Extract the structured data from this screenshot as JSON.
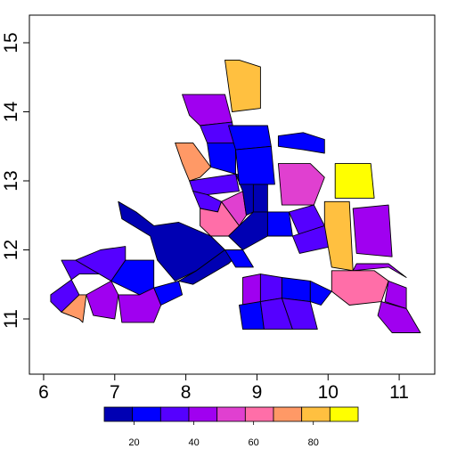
{
  "chart_data": {
    "type": "choropleth",
    "title": "",
    "xlabel": "",
    "ylabel": "",
    "xlim": [
      5.8,
      11.5
    ],
    "ylim": [
      10.2,
      15.4
    ],
    "x_ticks": [
      "6",
      "7",
      "8",
      "9",
      "10",
      "11"
    ],
    "y_ticks": [
      "11",
      "12",
      "13",
      "14",
      "15"
    ],
    "legend": {
      "min": 10,
      "max": 95,
      "tick_labels": [
        "20",
        "40",
        "60",
        "80"
      ],
      "tick_values": [
        20,
        40,
        60,
        80
      ],
      "colors": [
        "#0000B3",
        "#0000FF",
        "#5500FF",
        "#A000F0",
        "#E040D0",
        "#FF6EA8",
        "#FF9966",
        "#FFC040",
        "#FFFF00"
      ]
    },
    "regions": [
      {
        "value": 35,
        "points": [
          [
            6.25,
            11.85
          ],
          [
            6.45,
            11.85
          ],
          [
            6.95,
            11.55
          ],
          [
            6.95,
            11.65
          ],
          [
            6.5,
            11.65
          ],
          [
            6.1,
            11.35
          ],
          [
            6.1,
            11.25
          ],
          [
            6.25,
            11.1
          ],
          [
            6.5,
            11.0
          ],
          [
            6.5,
            11.35
          ]
        ]
      },
      {
        "value": 30,
        "points": [
          [
            6.45,
            11.85
          ],
          [
            6.8,
            12.0
          ],
          [
            7.15,
            12.05
          ],
          [
            7.15,
            11.85
          ],
          [
            6.95,
            11.55
          ],
          [
            6.45,
            11.85
          ]
        ]
      },
      {
        "value": 75,
        "points": [
          [
            6.25,
            11.1
          ],
          [
            6.5,
            11.0
          ],
          [
            6.55,
            10.95
          ],
          [
            6.6,
            11.35
          ],
          [
            6.5,
            11.35
          ],
          [
            6.25,
            11.1
          ]
        ]
      },
      {
        "value": 25,
        "points": [
          [
            6.95,
            11.55
          ],
          [
            7.15,
            11.85
          ],
          [
            7.55,
            11.85
          ],
          [
            7.55,
            11.45
          ],
          [
            7.35,
            11.35
          ],
          [
            6.95,
            11.55
          ]
        ]
      },
      {
        "value": 45,
        "points": [
          [
            6.6,
            11.35
          ],
          [
            6.95,
            11.55
          ],
          [
            7.05,
            11.35
          ],
          [
            7.0,
            11.0
          ],
          [
            6.7,
            11.05
          ],
          [
            6.6,
            11.35
          ]
        ]
      },
      {
        "value": 40,
        "points": [
          [
            7.05,
            11.35
          ],
          [
            7.35,
            11.35
          ],
          [
            7.55,
            11.45
          ],
          [
            7.65,
            11.2
          ],
          [
            7.55,
            10.95
          ],
          [
            7.1,
            10.95
          ],
          [
            7.05,
            11.35
          ]
        ]
      },
      {
        "value": 25,
        "points": [
          [
            7.55,
            11.45
          ],
          [
            7.65,
            11.2
          ],
          [
            7.95,
            11.35
          ],
          [
            7.9,
            11.55
          ],
          [
            7.55,
            11.45
          ]
        ]
      },
      {
        "value": 12,
        "points": [
          [
            7.05,
            12.7
          ],
          [
            7.3,
            12.55
          ],
          [
            7.55,
            12.35
          ],
          [
            7.9,
            12.4
          ],
          [
            8.35,
            12.2
          ],
          [
            8.55,
            12.0
          ],
          [
            8.15,
            11.7
          ],
          [
            7.85,
            11.55
          ],
          [
            7.6,
            11.85
          ],
          [
            7.5,
            12.2
          ],
          [
            7.1,
            12.45
          ],
          [
            7.05,
            12.7
          ]
        ]
      },
      {
        "value": 12,
        "points": [
          [
            7.9,
            11.55
          ],
          [
            8.15,
            11.7
          ],
          [
            8.55,
            12.0
          ],
          [
            8.8,
            12.0
          ],
          [
            8.6,
            11.8
          ],
          [
            8.35,
            11.65
          ],
          [
            8.1,
            11.5
          ],
          [
            7.9,
            11.55
          ]
        ]
      },
      {
        "value": 25,
        "points": [
          [
            8.55,
            12.0
          ],
          [
            8.8,
            12.0
          ],
          [
            8.95,
            11.75
          ],
          [
            8.7,
            11.75
          ],
          [
            8.55,
            12.0
          ]
        ]
      },
      {
        "value": 40,
        "points": [
          [
            7.95,
            14.25
          ],
          [
            8.55,
            14.25
          ],
          [
            8.65,
            13.85
          ],
          [
            8.2,
            13.8
          ],
          [
            8.05,
            13.95
          ],
          [
            7.95,
            14.25
          ]
        ]
      },
      {
        "value": 70,
        "points": [
          [
            7.85,
            13.55
          ],
          [
            8.1,
            13.55
          ],
          [
            8.35,
            13.2
          ],
          [
            8.2,
            13.05
          ],
          [
            8.05,
            13.0
          ],
          [
            7.95,
            13.25
          ],
          [
            7.85,
            13.55
          ]
        ]
      },
      {
        "value": 30,
        "points": [
          [
            8.2,
            13.8
          ],
          [
            8.65,
            13.85
          ],
          [
            8.7,
            13.55
          ],
          [
            8.3,
            13.55
          ],
          [
            8.2,
            13.8
          ]
        ]
      },
      {
        "value": 25,
        "points": [
          [
            8.3,
            13.55
          ],
          [
            8.7,
            13.55
          ],
          [
            8.7,
            13.1
          ],
          [
            8.35,
            13.2
          ],
          [
            8.3,
            13.55
          ]
        ]
      },
      {
        "value": 35,
        "points": [
          [
            8.05,
            13.0
          ],
          [
            8.7,
            13.1
          ],
          [
            8.75,
            12.85
          ],
          [
            8.3,
            12.8
          ],
          [
            8.1,
            12.85
          ],
          [
            8.05,
            13.0
          ]
        ]
      },
      {
        "value": 35,
        "points": [
          [
            8.1,
            12.85
          ],
          [
            8.3,
            12.8
          ],
          [
            8.5,
            12.7
          ],
          [
            8.45,
            12.55
          ],
          [
            8.2,
            12.6
          ],
          [
            8.1,
            12.85
          ]
        ]
      },
      {
        "value": 62,
        "points": [
          [
            8.2,
            12.6
          ],
          [
            8.45,
            12.55
          ],
          [
            8.5,
            12.7
          ],
          [
            8.75,
            12.35
          ],
          [
            8.6,
            12.2
          ],
          [
            8.35,
            12.2
          ],
          [
            8.2,
            12.35
          ],
          [
            8.2,
            12.6
          ]
        ]
      },
      {
        "value": 55,
        "points": [
          [
            8.5,
            12.7
          ],
          [
            8.8,
            12.85
          ],
          [
            8.85,
            12.5
          ],
          [
            8.75,
            12.35
          ],
          [
            8.5,
            12.7
          ]
        ]
      },
      {
        "value": 12,
        "points": [
          [
            8.7,
            13.1
          ],
          [
            8.95,
            13.05
          ],
          [
            8.95,
            12.55
          ],
          [
            8.85,
            12.5
          ],
          [
            8.8,
            12.85
          ],
          [
            8.7,
            13.1
          ]
        ]
      },
      {
        "value": 12,
        "points": [
          [
            8.95,
            12.95
          ],
          [
            9.15,
            12.95
          ],
          [
            9.15,
            12.55
          ],
          [
            8.95,
            12.55
          ],
          [
            8.95,
            12.95
          ]
        ]
      },
      {
        "value": 12,
        "points": [
          [
            8.75,
            12.35
          ],
          [
            8.95,
            12.55
          ],
          [
            9.15,
            12.55
          ],
          [
            9.15,
            12.2
          ],
          [
            8.8,
            12.0
          ],
          [
            8.6,
            12.2
          ],
          [
            8.75,
            12.35
          ]
        ]
      },
      {
        "value": 25,
        "points": [
          [
            9.15,
            12.55
          ],
          [
            9.45,
            12.55
          ],
          [
            9.5,
            12.2
          ],
          [
            9.15,
            12.2
          ],
          [
            9.15,
            12.55
          ]
        ]
      },
      {
        "value": 22,
        "points": [
          [
            8.6,
            13.8
          ],
          [
            9.15,
            13.8
          ],
          [
            9.2,
            13.5
          ],
          [
            8.7,
            13.45
          ],
          [
            8.6,
            13.8
          ]
        ]
      },
      {
        "value": 25,
        "points": [
          [
            8.7,
            13.45
          ],
          [
            9.2,
            13.5
          ],
          [
            9.25,
            12.95
          ],
          [
            8.75,
            12.95
          ],
          [
            8.7,
            13.45
          ]
        ]
      },
      {
        "value": 85,
        "points": [
          [
            8.55,
            14.75
          ],
          [
            8.75,
            14.75
          ],
          [
            9.05,
            14.65
          ],
          [
            9.05,
            14.05
          ],
          [
            8.65,
            14.0
          ],
          [
            8.55,
            14.75
          ]
        ]
      },
      {
        "value": 25,
        "points": [
          [
            9.3,
            13.65
          ],
          [
            9.65,
            13.7
          ],
          [
            9.95,
            13.6
          ],
          [
            9.95,
            13.4
          ],
          [
            9.65,
            13.45
          ],
          [
            9.3,
            13.5
          ],
          [
            9.3,
            13.65
          ]
        ]
      },
      {
        "value": 55,
        "points": [
          [
            9.3,
            13.25
          ],
          [
            9.75,
            13.25
          ],
          [
            9.95,
            13.05
          ],
          [
            9.8,
            12.65
          ],
          [
            9.35,
            12.65
          ],
          [
            9.3,
            13.25
          ]
        ]
      },
      {
        "value": 35,
        "points": [
          [
            9.45,
            12.55
          ],
          [
            9.8,
            12.65
          ],
          [
            9.95,
            12.35
          ],
          [
            9.6,
            12.2
          ],
          [
            9.45,
            12.55
          ]
        ]
      },
      {
        "value": 30,
        "points": [
          [
            9.5,
            12.2
          ],
          [
            9.95,
            12.35
          ],
          [
            10.05,
            12.05
          ],
          [
            9.6,
            11.95
          ],
          [
            9.5,
            12.2
          ]
        ]
      },
      {
        "value": 95,
        "points": [
          [
            10.1,
            13.25
          ],
          [
            10.6,
            13.25
          ],
          [
            10.65,
            12.75
          ],
          [
            10.1,
            12.75
          ],
          [
            10.1,
            13.25
          ]
        ]
      },
      {
        "value": 85,
        "points": [
          [
            9.95,
            12.7
          ],
          [
            10.3,
            12.7
          ],
          [
            10.35,
            11.7
          ],
          [
            10.05,
            11.75
          ],
          [
            9.95,
            12.35
          ],
          [
            9.95,
            12.7
          ]
        ]
      },
      {
        "value": 45,
        "points": [
          [
            10.35,
            12.6
          ],
          [
            10.85,
            12.65
          ],
          [
            10.9,
            11.9
          ],
          [
            10.4,
            11.95
          ],
          [
            10.35,
            12.6
          ]
        ]
      },
      {
        "value": 40,
        "points": [
          [
            10.35,
            11.7
          ],
          [
            10.85,
            11.75
          ],
          [
            11.1,
            11.6
          ],
          [
            10.85,
            11.8
          ],
          [
            10.4,
            11.8
          ],
          [
            10.35,
            11.7
          ]
        ]
      },
      {
        "value": 65,
        "points": [
          [
            10.05,
            11.7
          ],
          [
            10.65,
            11.7
          ],
          [
            10.85,
            11.55
          ],
          [
            10.75,
            11.25
          ],
          [
            10.3,
            11.2
          ],
          [
            10.05,
            11.4
          ],
          [
            10.05,
            11.7
          ]
        ]
      },
      {
        "value": 40,
        "points": [
          [
            10.85,
            11.55
          ],
          [
            11.1,
            11.45
          ],
          [
            11.1,
            11.15
          ],
          [
            10.8,
            11.25
          ],
          [
            10.85,
            11.55
          ]
        ]
      },
      {
        "value": 45,
        "points": [
          [
            10.75,
            11.25
          ],
          [
            11.1,
            11.15
          ],
          [
            11.3,
            10.8
          ],
          [
            10.9,
            10.8
          ],
          [
            10.7,
            11.05
          ],
          [
            10.75,
            11.25
          ]
        ]
      },
      {
        "value": 45,
        "points": [
          [
            8.8,
            11.6
          ],
          [
            9.05,
            11.65
          ],
          [
            9.05,
            11.25
          ],
          [
            8.8,
            11.2
          ],
          [
            8.8,
            11.6
          ]
        ]
      },
      {
        "value": 25,
        "points": [
          [
            8.75,
            11.2
          ],
          [
            9.05,
            11.25
          ],
          [
            9.1,
            10.85
          ],
          [
            8.8,
            10.85
          ],
          [
            8.75,
            11.2
          ]
        ]
      },
      {
        "value": 30,
        "points": [
          [
            9.05,
            11.65
          ],
          [
            9.35,
            11.6
          ],
          [
            9.35,
            11.3
          ],
          [
            9.05,
            11.25
          ],
          [
            9.05,
            11.65
          ]
        ]
      },
      {
        "value": 30,
        "points": [
          [
            9.05,
            11.25
          ],
          [
            9.35,
            11.3
          ],
          [
            9.5,
            10.85
          ],
          [
            9.1,
            10.85
          ],
          [
            9.05,
            11.25
          ]
        ]
      },
      {
        "value": 25,
        "points": [
          [
            9.35,
            11.6
          ],
          [
            9.75,
            11.55
          ],
          [
            9.75,
            11.25
          ],
          [
            9.35,
            11.3
          ],
          [
            9.35,
            11.6
          ]
        ]
      },
      {
        "value": 30,
        "points": [
          [
            9.35,
            11.3
          ],
          [
            9.75,
            11.25
          ],
          [
            9.85,
            10.85
          ],
          [
            9.5,
            10.85
          ],
          [
            9.35,
            11.3
          ]
        ]
      },
      {
        "value": 25,
        "points": [
          [
            9.75,
            11.55
          ],
          [
            10.05,
            11.4
          ],
          [
            9.9,
            11.2
          ],
          [
            9.75,
            11.25
          ],
          [
            9.75,
            11.55
          ]
        ]
      }
    ]
  }
}
